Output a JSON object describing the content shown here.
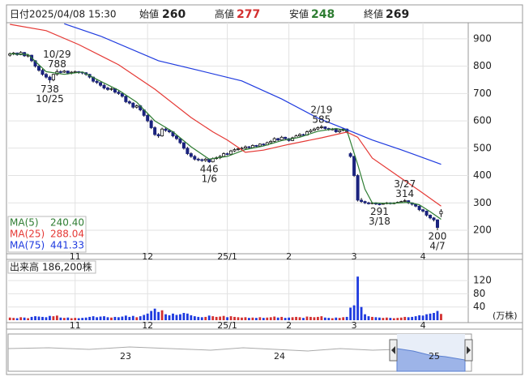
{
  "header": {
    "date_label": "日付",
    "datetime": "2025/04/08 15:30",
    "open_label": "始値",
    "open": 260,
    "high_label": "高値",
    "high": 277,
    "low_label": "安値",
    "low": 248,
    "close_label": "終値",
    "close": 269
  },
  "chart_data": [
    {
      "type": "candlestick",
      "xlim": [
        -0.5,
        126.5
      ],
      "ylim": [
        114,
        959
      ],
      "yticks": [
        200,
        300,
        400,
        500,
        600,
        700,
        800,
        900
      ],
      "xticks": [
        {
          "value": 18,
          "label": "11"
        },
        {
          "value": 38,
          "label": "12"
        },
        {
          "value": 60,
          "label": "25/1"
        },
        {
          "value": 77,
          "label": "2"
        },
        {
          "value": 95,
          "label": "3"
        },
        {
          "value": 114,
          "label": "4"
        }
      ],
      "up_color": "#ffffff",
      "down_color": "#1a237e",
      "grid": true,
      "candles": [
        [
          840,
          850,
          835,
          845
        ],
        [
          845,
          852,
          840,
          848
        ],
        [
          848,
          850,
          838,
          842
        ],
        [
          842,
          855,
          840,
          850
        ],
        [
          850,
          852,
          834,
          838
        ],
        [
          838,
          845,
          832,
          840
        ],
        [
          840,
          842,
          815,
          820
        ],
        [
          820,
          822,
          795,
          800
        ],
        [
          800,
          805,
          780,
          785
        ],
        [
          785,
          790,
          765,
          770
        ],
        [
          770,
          775,
          755,
          760
        ],
        [
          760,
          765,
          738,
          750
        ],
        [
          750,
          772,
          745,
          770
        ],
        [
          770,
          788,
          765,
          780
        ],
        [
          780,
          785,
          772,
          778
        ],
        [
          778,
          786,
          775,
          782
        ],
        [
          782,
          784,
          770,
          775
        ],
        [
          775,
          782,
          770,
          778
        ],
        [
          778,
          784,
          774,
          780
        ],
        [
          780,
          782,
          772,
          778
        ],
        [
          778,
          780,
          770,
          776
        ],
        [
          776,
          778,
          765,
          770
        ],
        [
          770,
          772,
          755,
          760
        ],
        [
          760,
          762,
          740,
          745
        ],
        [
          745,
          750,
          735,
          740
        ],
        [
          740,
          742,
          725,
          730
        ],
        [
          730,
          735,
          715,
          720
        ],
        [
          720,
          725,
          710,
          715
        ],
        [
          715,
          722,
          710,
          718
        ],
        [
          718,
          720,
          700,
          705
        ],
        [
          705,
          710,
          695,
          700
        ],
        [
          700,
          705,
          685,
          690
        ],
        [
          690,
          692,
          665,
          670
        ],
        [
          670,
          675,
          660,
          665
        ],
        [
          665,
          668,
          645,
          650
        ],
        [
          650,
          660,
          645,
          655
        ],
        [
          655,
          658,
          635,
          640
        ],
        [
          640,
          642,
          615,
          620
        ],
        [
          620,
          625,
          595,
          600
        ],
        [
          600,
          605,
          570,
          575
        ],
        [
          575,
          580,
          545,
          550
        ],
        [
          550,
          555,
          538,
          545
        ],
        [
          545,
          575,
          542,
          570
        ],
        [
          570,
          578,
          560,
          565
        ],
        [
          565,
          570,
          555,
          560
        ],
        [
          560,
          562,
          540,
          545
        ],
        [
          545,
          548,
          530,
          535
        ],
        [
          535,
          538,
          515,
          520
        ],
        [
          520,
          522,
          495,
          500
        ],
        [
          500,
          505,
          475,
          480
        ],
        [
          480,
          485,
          465,
          470
        ],
        [
          470,
          475,
          455,
          460
        ],
        [
          460,
          465,
          452,
          458
        ],
        [
          458,
          462,
          450,
          455
        ],
        [
          455,
          465,
          450,
          460
        ],
        [
          460,
          462,
          446,
          450
        ],
        [
          450,
          466,
          448,
          462
        ],
        [
          462,
          470,
          458,
          465
        ],
        [
          465,
          475,
          460,
          470
        ],
        [
          470,
          485,
          468,
          480
        ],
        [
          480,
          484,
          474,
          478
        ],
        [
          478,
          494,
          476,
          490
        ],
        [
          490,
          500,
          486,
          495
        ],
        [
          495,
          502,
          490,
          498
        ],
        [
          498,
          505,
          494,
          500
        ],
        [
          500,
          510,
          497,
          505
        ],
        [
          505,
          508,
          498,
          502
        ],
        [
          502,
          514,
          500,
          510
        ],
        [
          510,
          512,
          504,
          508
        ],
        [
          508,
          518,
          505,
          515
        ],
        [
          515,
          518,
          508,
          512
        ],
        [
          512,
          524,
          510,
          520
        ],
        [
          520,
          530,
          518,
          525
        ],
        [
          525,
          540,
          522,
          535
        ],
        [
          535,
          538,
          526,
          530
        ],
        [
          530,
          545,
          528,
          540
        ],
        [
          540,
          542,
          532,
          535
        ],
        [
          535,
          537,
          524,
          528
        ],
        [
          528,
          542,
          526,
          538
        ],
        [
          538,
          550,
          536,
          545
        ],
        [
          545,
          555,
          542,
          550
        ],
        [
          550,
          553,
          544,
          548
        ],
        [
          548,
          565,
          546,
          560
        ],
        [
          560,
          570,
          556,
          565
        ],
        [
          565,
          575,
          562,
          570
        ],
        [
          570,
          580,
          566,
          575
        ],
        [
          575,
          585,
          570,
          578
        ],
        [
          578,
          580,
          568,
          572
        ],
        [
          572,
          575,
          564,
          568
        ],
        [
          568,
          574,
          565,
          570
        ],
        [
          570,
          572,
          556,
          560
        ],
        [
          560,
          568,
          555,
          565
        ],
        [
          565,
          575,
          562,
          570
        ],
        [
          570,
          572,
          555,
          560
        ],
        [
          480,
          485,
          465,
          470
        ],
        [
          470,
          472,
          395,
          400
        ],
        [
          400,
          405,
          305,
          310
        ],
        [
          310,
          318,
          300,
          305
        ],
        [
          305,
          308,
          296,
          300
        ],
        [
          300,
          304,
          294,
          298
        ],
        [
          298,
          303,
          295,
          300
        ],
        [
          300,
          302,
          292,
          296
        ],
        [
          296,
          299,
          291,
          295
        ],
        [
          295,
          300,
          293,
          298
        ],
        [
          298,
          303,
          295,
          300
        ],
        [
          300,
          302,
          294,
          297
        ],
        [
          297,
          302,
          295,
          300
        ],
        [
          300,
          305,
          298,
          302
        ],
        [
          302,
          308,
          300,
          305
        ],
        [
          305,
          314,
          303,
          308
        ],
        [
          308,
          310,
          296,
          300
        ],
        [
          300,
          302,
          290,
          295
        ],
        [
          295,
          298,
          284,
          288
        ],
        [
          288,
          290,
          270,
          275
        ],
        [
          275,
          278,
          265,
          270
        ],
        [
          270,
          272,
          250,
          255
        ],
        [
          255,
          258,
          240,
          245
        ],
        [
          245,
          248,
          232,
          238
        ],
        [
          238,
          240,
          200,
          210
        ],
        [
          260,
          277,
          248,
          269
        ]
      ],
      "series": [
        {
          "name": "MA(5)",
          "last": "240.40",
          "color": "#2e7d32",
          "x": [
            0,
            5,
            10,
            15,
            20,
            25,
            30,
            35,
            40,
            45,
            50,
            55,
            60,
            65,
            70,
            75,
            80,
            85,
            90,
            93,
            96,
            98,
            100,
            105,
            110,
            113,
            116,
            119
          ],
          "values": [
            845,
            843,
            780,
            770,
            779,
            745,
            712,
            668,
            600,
            560,
            505,
            460,
            470,
            495,
            508,
            528,
            540,
            562,
            572,
            565,
            440,
            350,
            300,
            298,
            302,
            293,
            268,
            240
          ]
        },
        {
          "name": "MA(25)",
          "last": "288.04",
          "color": "#e53935",
          "x": [
            0,
            10,
            19,
            30,
            40,
            50,
            56,
            60,
            65,
            70,
            77,
            86,
            93,
            96,
            100,
            108,
            113,
            119
          ],
          "values": [
            953,
            930,
            879,
            805,
            716,
            612,
            560,
            530,
            485,
            493,
            514,
            538,
            559,
            540,
            464,
            390,
            345,
            288
          ]
        },
        {
          "name": "MA(75)",
          "last": "441.33",
          "color": "#1e3adf",
          "x": [
            15,
            25,
            41,
            52,
            64,
            75,
            85,
            93,
            100,
            108,
            119
          ],
          "values": [
            955,
            910,
            820,
            785,
            746,
            680,
            610,
            568,
            530,
            494,
            441
          ]
        }
      ],
      "annotations": [
        {
          "index": 13,
          "value": 788,
          "label": "10/29",
          "position": "above"
        },
        {
          "index": 11,
          "value": 738,
          "label": "10/25",
          "position": "below"
        },
        {
          "index": 55,
          "value": 446,
          "label": "1/6",
          "position": "below"
        },
        {
          "index": 86,
          "value": 585,
          "label": "2/19",
          "position": "above"
        },
        {
          "index": 102,
          "value": 291,
          "label": "3/18",
          "position": "below"
        },
        {
          "index": 109,
          "value": 314,
          "label": "3/27",
          "position": "above"
        },
        {
          "index": 118,
          "value": 200,
          "label": "4/7",
          "position": "below"
        }
      ]
    },
    {
      "type": "bar",
      "title": "出来高",
      "total": "186,200株",
      "unit": "(万株)",
      "ylim": [
        0,
        184
      ],
      "yticks": [
        40,
        80,
        120
      ],
      "up_color": "#d32f2f",
      "down_color": "#1e3adf",
      "values": [
        8,
        7,
        6,
        9,
        8,
        6,
        10,
        12,
        11,
        10,
        9,
        13,
        12,
        14,
        8,
        7,
        8,
        6,
        7,
        6,
        7,
        8,
        10,
        12,
        9,
        11,
        12,
        9,
        8,
        10,
        9,
        11,
        14,
        10,
        13,
        9,
        12,
        16,
        20,
        28,
        35,
        25,
        30,
        18,
        15,
        20,
        16,
        18,
        22,
        20,
        15,
        12,
        10,
        9,
        10,
        14,
        12,
        10,
        11,
        13,
        9,
        12,
        10,
        9,
        8,
        9,
        7,
        8,
        7,
        9,
        7,
        8,
        9,
        11,
        8,
        10,
        7,
        8,
        9,
        10,
        9,
        7,
        11,
        10,
        9,
        10,
        12,
        8,
        7,
        6,
        8,
        7,
        9,
        10,
        38,
        45,
        132,
        40,
        18,
        12,
        10,
        9,
        8,
        7,
        8,
        7,
        6,
        7,
        8,
        10,
        9,
        10,
        12,
        15,
        14,
        18,
        20,
        22,
        28,
        19
      ]
    }
  ],
  "navigator": {
    "labels": [
      "23",
      "24",
      "25"
    ]
  }
}
